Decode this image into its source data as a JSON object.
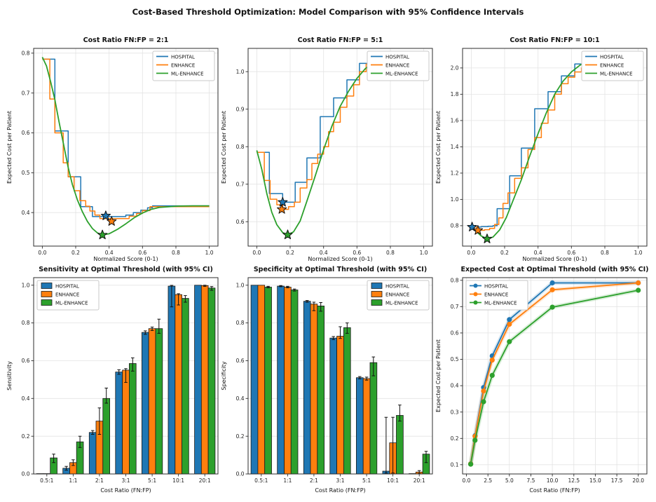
{
  "figure": {
    "title": "Cost-Based Threshold Optimization: Model Comparison with 95% Confidence Intervals"
  },
  "colors": {
    "HOSPITAL": "#1f77b4",
    "ENHANCE": "#ff7f0e",
    "ML-ENHANCE": "#2ca02c"
  },
  "models": [
    "HOSPITAL",
    "ENHANCE",
    "ML-ENHANCE"
  ],
  "chart_data": [
    {
      "type": "line",
      "title": "Cost Ratio FN:FP = 2:1",
      "xlabel": "Normalized Score (0-1)",
      "ylabel": "Expected Cost per Patient",
      "xlim": [
        -0.052,
        1.052
      ],
      "ylim": [
        0.316,
        0.812
      ],
      "xticks": [
        0,
        0.2,
        0.4,
        0.6,
        0.8,
        1.0
      ],
      "xtick_labels": [
        "0.0",
        "0.2",
        "0.4",
        "0.6",
        "0.8",
        "1.0"
      ],
      "yticks": [
        0.4,
        0.5,
        0.6,
        0.7,
        0.8
      ],
      "ytick_labels": [
        "0.4",
        "0.5",
        "0.6",
        "0.7",
        "0.8"
      ],
      "legend_pos": "top-right",
      "series": [
        {
          "name": "HOSPITAL",
          "style": "step",
          "x": [
            0,
            0.075,
            0.155,
            0.23,
            0.3,
            0.5,
            0.545,
            0.59,
            0.63,
            0.66,
            1.0
          ],
          "y": [
            0.785,
            0.605,
            0.49,
            0.415,
            0.39,
            0.394,
            0.4,
            0.406,
            0.412,
            0.417,
            0.417
          ]
        },
        {
          "name": "ENHANCE",
          "style": "step",
          "x": [
            0,
            0.045,
            0.075,
            0.125,
            0.155,
            0.19,
            0.225,
            0.26,
            0.285,
            0.315,
            0.345,
            0.52,
            0.565,
            0.6,
            0.645,
            1.0
          ],
          "y": [
            0.785,
            0.685,
            0.6,
            0.525,
            0.49,
            0.455,
            0.43,
            0.416,
            0.404,
            0.394,
            0.385,
            0.391,
            0.398,
            0.405,
            0.415,
            0.415
          ]
        },
        {
          "name": "ML-ENHANCE",
          "style": "smooth",
          "x": [
            0,
            0.025,
            0.05,
            0.075,
            0.1,
            0.13,
            0.155,
            0.18,
            0.21,
            0.24,
            0.27,
            0.3,
            0.33,
            0.36,
            0.4,
            0.45,
            0.5,
            0.55,
            0.6,
            0.65,
            0.7,
            0.8,
            0.9,
            1.0
          ],
          "y": [
            0.79,
            0.768,
            0.728,
            0.683,
            0.628,
            0.565,
            0.513,
            0.47,
            0.432,
            0.402,
            0.378,
            0.36,
            0.349,
            0.344,
            0.347,
            0.358,
            0.372,
            0.387,
            0.399,
            0.408,
            0.413,
            0.416,
            0.417,
            0.417
          ]
        }
      ],
      "stars": [
        {
          "series": "HOSPITAL",
          "x": 0.38,
          "y": 0.392
        },
        {
          "series": "ENHANCE",
          "x": 0.415,
          "y": 0.378
        },
        {
          "series": "ML-ENHANCE",
          "x": 0.36,
          "y": 0.344
        }
      ]
    },
    {
      "type": "line",
      "title": "Cost Ratio FN:FP = 5:1",
      "xlabel": "Normalized Score (0-1)",
      "ylabel": "Expected Cost per Patient",
      "xlim": [
        -0.052,
        1.052
      ],
      "ylim": [
        0.535,
        1.062
      ],
      "xticks": [
        0,
        0.2,
        0.4,
        0.6,
        0.8,
        1.0
      ],
      "xtick_labels": [
        "0.0",
        "0.2",
        "0.4",
        "0.6",
        "0.8",
        "1.0"
      ],
      "yticks": [
        0.6,
        0.7,
        0.8,
        0.9,
        1.0
      ],
      "ytick_labels": [
        "0.6",
        "0.7",
        "0.8",
        "0.9",
        "1.0"
      ],
      "legend_pos": "top-right",
      "series": [
        {
          "name": "HOSPITAL",
          "style": "step",
          "x": [
            0,
            0.075,
            0.155,
            0.23,
            0.3,
            0.38,
            0.46,
            0.54,
            0.615,
            0.67,
            1.0
          ],
          "y": [
            0.785,
            0.675,
            0.652,
            0.705,
            0.77,
            0.88,
            0.93,
            0.978,
            1.022,
            1.036,
            1.038
          ]
        },
        {
          "name": "ENHANCE",
          "style": "step",
          "x": [
            0,
            0.045,
            0.08,
            0.12,
            0.155,
            0.19,
            0.225,
            0.26,
            0.3,
            0.33,
            0.365,
            0.4,
            0.43,
            0.46,
            0.5,
            0.54,
            0.58,
            0.615,
            0.655,
            0.695,
            1.0
          ],
          "y": [
            0.785,
            0.71,
            0.66,
            0.645,
            0.633,
            0.64,
            0.652,
            0.69,
            0.712,
            0.755,
            0.78,
            0.8,
            0.84,
            0.865,
            0.905,
            0.935,
            0.965,
            1.0,
            1.02,
            1.032,
            1.034
          ]
        },
        {
          "name": "ML-ENHANCE",
          "style": "smooth",
          "x": [
            0,
            0.03,
            0.06,
            0.09,
            0.12,
            0.155,
            0.185,
            0.22,
            0.26,
            0.3,
            0.35,
            0.4,
            0.45,
            0.5,
            0.55,
            0.6,
            0.65,
            0.7,
            0.75,
            0.85,
            1.0
          ],
          "y": [
            0.79,
            0.74,
            0.675,
            0.625,
            0.592,
            0.571,
            0.565,
            0.573,
            0.602,
            0.655,
            0.722,
            0.792,
            0.855,
            0.908,
            0.948,
            0.982,
            1.008,
            1.026,
            1.038,
            1.045,
            1.046
          ]
        }
      ],
      "stars": [
        {
          "series": "HOSPITAL",
          "x": 0.155,
          "y": 0.652
        },
        {
          "series": "ENHANCE",
          "x": 0.15,
          "y": 0.633
        },
        {
          "series": "ML-ENHANCE",
          "x": 0.185,
          "y": 0.565
        }
      ]
    },
    {
      "type": "line",
      "title": "Cost Ratio FN:FP = 10:1",
      "xlabel": "Normalized Score (0-1)",
      "ylabel": "Expected Cost per Patient",
      "xlim": [
        -0.052,
        1.052
      ],
      "ylim": [
        0.645,
        2.149
      ],
      "xticks": [
        0,
        0.2,
        0.4,
        0.6,
        0.8,
        1.0
      ],
      "xtick_labels": [
        "0.0",
        "0.2",
        "0.4",
        "0.6",
        "0.8",
        "1.0"
      ],
      "yticks": [
        0.8,
        1.0,
        1.2,
        1.4,
        1.6,
        1.8,
        2.0
      ],
      "ytick_labels": [
        "0.8",
        "1.0",
        "1.2",
        "1.4",
        "1.6",
        "1.8",
        "2.0"
      ],
      "legend_pos": "top-right",
      "series": [
        {
          "name": "HOSPITAL",
          "style": "step",
          "x": [
            0,
            0.06,
            0.1,
            0.13,
            0.155,
            0.23,
            0.3,
            0.38,
            0.46,
            0.54,
            0.62,
            0.7,
            1.0
          ],
          "y": [
            0.79,
            0.793,
            0.796,
            0.8,
            0.93,
            1.18,
            1.39,
            1.69,
            1.82,
            1.94,
            2.03,
            2.07,
            2.075
          ]
        },
        {
          "name": "ENHANCE",
          "style": "step",
          "x": [
            0,
            0.04,
            0.08,
            0.11,
            0.14,
            0.165,
            0.19,
            0.22,
            0.26,
            0.3,
            0.34,
            0.38,
            0.42,
            0.46,
            0.5,
            0.54,
            0.58,
            0.62,
            0.66,
            0.7,
            1.0
          ],
          "y": [
            0.79,
            0.765,
            0.77,
            0.78,
            0.81,
            0.86,
            0.97,
            1.05,
            1.16,
            1.24,
            1.38,
            1.47,
            1.58,
            1.68,
            1.8,
            1.88,
            1.93,
            1.97,
            2.0,
            2.04,
            2.05
          ]
        },
        {
          "name": "ML-ENHANCE",
          "style": "smooth",
          "x": [
            0,
            0.03,
            0.06,
            0.095,
            0.13,
            0.17,
            0.21,
            0.25,
            0.3,
            0.35,
            0.4,
            0.45,
            0.5,
            0.55,
            0.6,
            0.65,
            0.7,
            0.75,
            0.85,
            1.0
          ],
          "y": [
            0.79,
            0.757,
            0.722,
            0.7,
            0.714,
            0.768,
            0.862,
            0.99,
            1.15,
            1.33,
            1.5,
            1.66,
            1.8,
            1.9,
            1.97,
            2.02,
            2.055,
            2.07,
            2.08,
            2.08
          ]
        }
      ],
      "stars": [
        {
          "series": "HOSPITAL",
          "x": 0.005,
          "y": 0.79
        },
        {
          "series": "ENHANCE",
          "x": 0.04,
          "y": 0.765
        },
        {
          "series": "ML-ENHANCE",
          "x": 0.095,
          "y": 0.7
        }
      ]
    },
    {
      "type": "bar",
      "title": "Sensitivity at Optimal Threshold (with 95% CI)",
      "xlabel": "Cost Ratio (FN:FP)",
      "ylabel": "Sensitivity",
      "categories": [
        "0.5:1",
        "1:1",
        "2:1",
        "3:1",
        "5:1",
        "10:1",
        "20:1"
      ],
      "ylim": [
        0,
        1.04
      ],
      "yticks": [
        0,
        0.2,
        0.4,
        0.6,
        0.8,
        1.0
      ],
      "ytick_labels": [
        "0.0",
        "0.2",
        "0.4",
        "0.6",
        "0.8",
        "1.0"
      ],
      "legend_pos": "top-left",
      "series": [
        {
          "name": "HOSPITAL",
          "values": [
            0.002,
            0.03,
            0.22,
            0.54,
            0.75,
            0.995,
            1.0
          ],
          "err_low": [
            0,
            0.01,
            0.01,
            0.012,
            0.01,
            0.11,
            0.002
          ],
          "err_high": [
            0,
            0.01,
            0.01,
            0.012,
            0.008,
            0.004,
            0.001
          ]
        },
        {
          "name": "ENHANCE",
          "values": [
            0.002,
            0.06,
            0.28,
            0.55,
            0.77,
            0.95,
            0.998
          ],
          "err_low": [
            0,
            0.015,
            0.07,
            0.065,
            0.01,
            0.055,
            0.004
          ],
          "err_high": [
            0,
            0.015,
            0.07,
            0.008,
            0.008,
            0.005,
            0.002
          ]
        },
        {
          "name": "ML-ENHANCE",
          "values": [
            0.085,
            0.17,
            0.4,
            0.585,
            0.77,
            0.93,
            0.985
          ],
          "err_low": [
            0.025,
            0.03,
            0.025,
            0.04,
            0.025,
            0.02,
            0.012
          ],
          "err_high": [
            0.02,
            0.03,
            0.055,
            0.03,
            0.05,
            0.015,
            0.008
          ]
        }
      ]
    },
    {
      "type": "bar",
      "title": "Specificity at Optimal Threshold (with 95% CI)",
      "xlabel": "Cost Ratio (FN:FP)",
      "ylabel": "Specificity",
      "categories": [
        "0.5:1",
        "1:1",
        "2:1",
        "3:1",
        "5:1",
        "10:1",
        "20:1"
      ],
      "ylim": [
        0,
        1.04
      ],
      "yticks": [
        0,
        0.2,
        0.4,
        0.6,
        0.8,
        1.0
      ],
      "ytick_labels": [
        "0.0",
        "0.2",
        "0.4",
        "0.6",
        "0.8",
        "1.0"
      ],
      "legend_pos": "top-right",
      "series": [
        {
          "name": "HOSPITAL",
          "values": [
            1.0,
            0.995,
            0.915,
            0.72,
            0.51,
            0.015,
            0.002
          ],
          "err_low": [
            0.002,
            0.003,
            0.005,
            0.008,
            0.006,
            0.01,
            0
          ],
          "err_high": [
            0.001,
            0.003,
            0.004,
            0.008,
            0.006,
            0.285,
            0
          ]
        },
        {
          "name": "ENHANCE",
          "values": [
            1.0,
            0.99,
            0.9,
            0.73,
            0.505,
            0.165,
            0.01
          ],
          "err_low": [
            0.002,
            0.004,
            0.035,
            0.012,
            0.008,
            0.16,
            0.008
          ],
          "err_high": [
            0.001,
            0.004,
            0.01,
            0.05,
            0.008,
            0.135,
            0.008
          ]
        },
        {
          "name": "ML-ENHANCE",
          "values": [
            0.99,
            0.975,
            0.89,
            0.775,
            0.59,
            0.31,
            0.105
          ],
          "err_low": [
            0.004,
            0.006,
            0.028,
            0.03,
            0.07,
            0.03,
            0.045
          ],
          "err_high": [
            0.004,
            0.005,
            0.018,
            0.025,
            0.03,
            0.055,
            0.015
          ]
        }
      ]
    },
    {
      "type": "marker-line",
      "title": "Expected Cost at Optimal Threshold (with 95% CI)",
      "xlabel": "Cost Ratio (FN:FP)",
      "ylabel": "Expected Cost per Patient",
      "x": [
        0.5,
        1,
        2,
        3,
        5,
        10,
        20
      ],
      "xlim": [
        -0.45,
        21.0
      ],
      "ylim": [
        0.065,
        0.81
      ],
      "xticks": [
        0,
        2.5,
        5,
        7.5,
        10,
        12.5,
        15,
        17.5,
        20
      ],
      "xtick_labels": [
        "0.0",
        "2.5",
        "5.0",
        "7.5",
        "10.0",
        "12.5",
        "15.0",
        "17.5",
        "20.0"
      ],
      "yticks": [
        0.1,
        0.2,
        0.3,
        0.4,
        0.5,
        0.6,
        0.7,
        0.8
      ],
      "ytick_labels": [
        "0.1",
        "0.2",
        "0.3",
        "0.4",
        "0.5",
        "0.6",
        "0.7",
        "0.8"
      ],
      "legend_pos": "top-left",
      "series": [
        {
          "name": "HOSPITAL",
          "values": [
            0.103,
            0.21,
            0.393,
            0.513,
            0.651,
            0.79,
            0.79
          ]
        },
        {
          "name": "ENHANCE",
          "values": [
            0.103,
            0.208,
            0.38,
            0.497,
            0.633,
            0.764,
            0.79
          ]
        },
        {
          "name": "ML-ENHANCE",
          "values": [
            0.102,
            0.193,
            0.339,
            0.439,
            0.567,
            0.698,
            0.762
          ]
        }
      ]
    }
  ]
}
